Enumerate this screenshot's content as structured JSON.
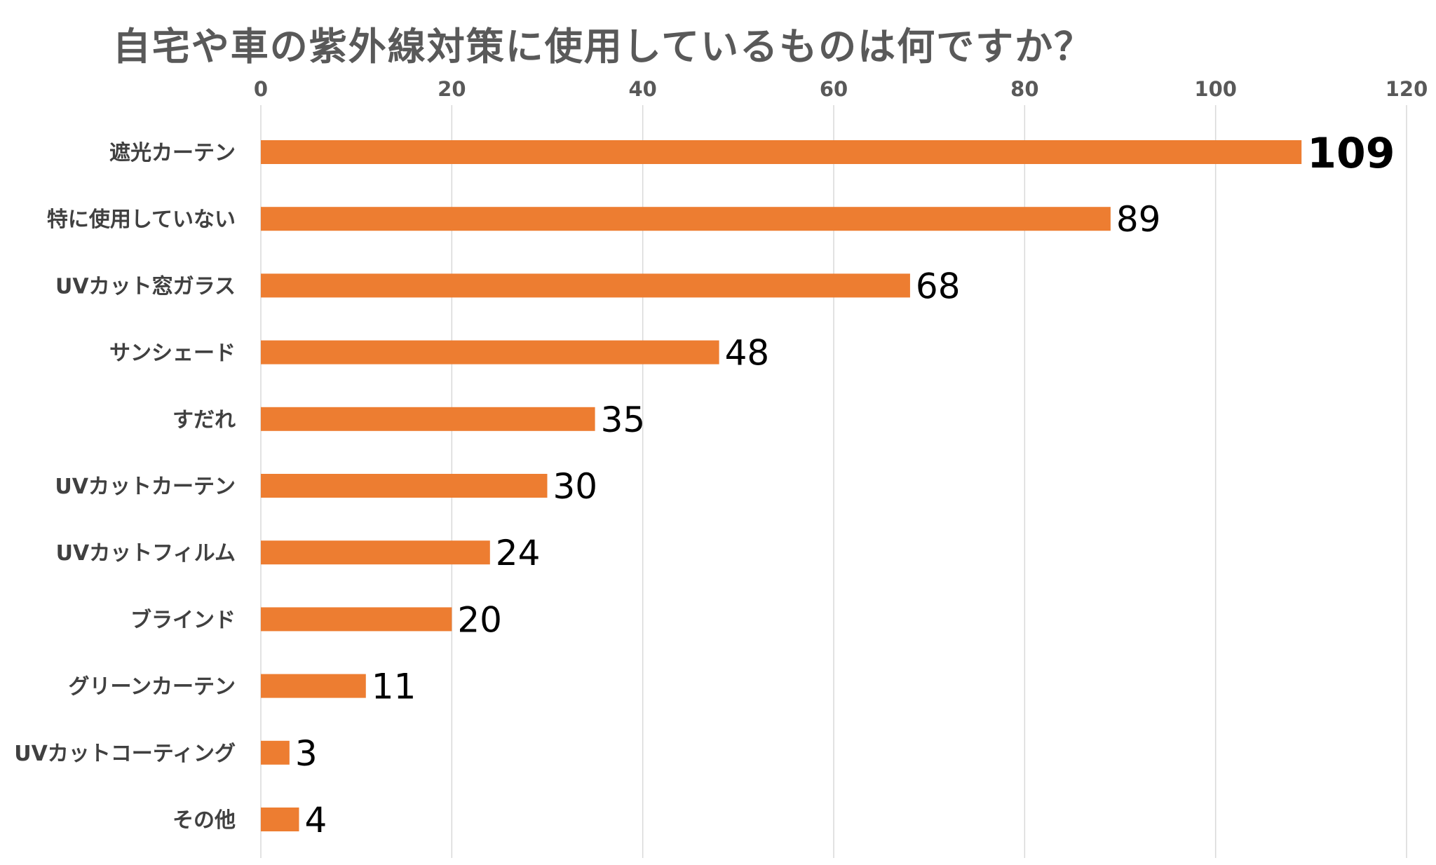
{
  "chart_data": {
    "type": "bar",
    "orientation": "horizontal",
    "title": "自宅や車の紫外線対策に使用しているものは何ですか？",
    "xlabel": "",
    "ylabel": "",
    "xlim": [
      0,
      120
    ],
    "ticks": [
      0,
      20,
      40,
      60,
      80,
      100,
      120
    ],
    "axis_position": "top",
    "grid": true,
    "legend": "none",
    "categories": [
      "遮光カーテン",
      "特に使用していない",
      "UVカット窓ガラス",
      "サンシェード",
      "すだれ",
      "UVカットカーテン",
      "UVカットフィルム",
      "ブラインド",
      "グリーンカーテン",
      "UVカットコーティング",
      "その他"
    ],
    "values": [
      109,
      89,
      68,
      48,
      35,
      30,
      24,
      20,
      11,
      3,
      4
    ],
    "colors": {
      "bar": "#ED7D31",
      "grid": "#D9D9D9",
      "title": "#595959",
      "tick": "#595959",
      "category": "#404040",
      "data_label": "#000000"
    }
  }
}
